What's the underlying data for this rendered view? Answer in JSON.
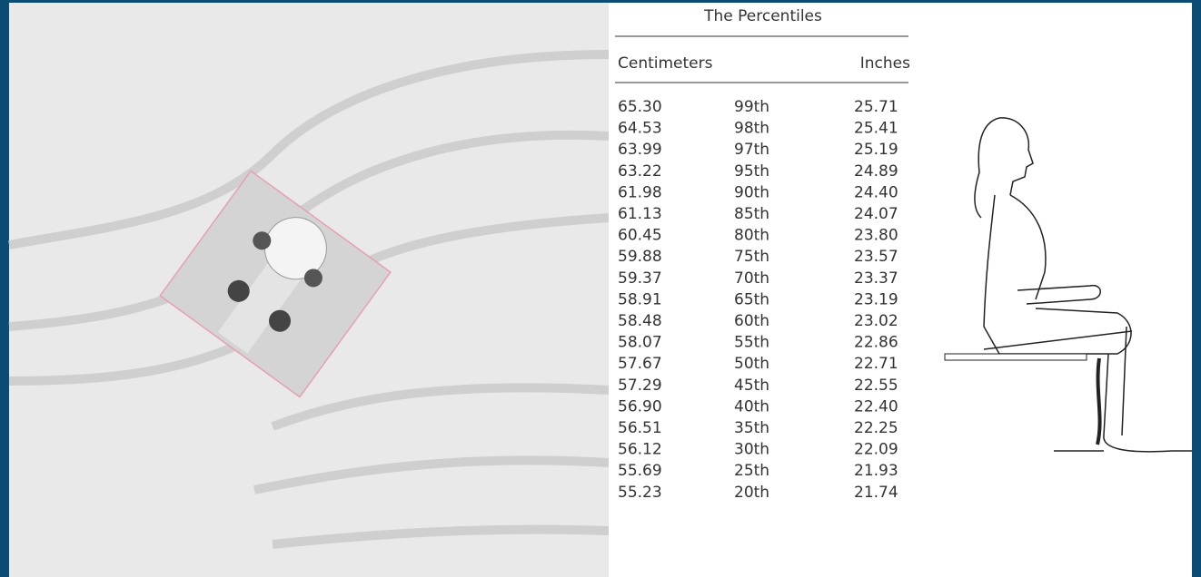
{
  "table": {
    "title": "The Percentiles",
    "columns": [
      "Centimeters",
      "Inches"
    ],
    "rows": [
      [
        "65.30",
        "99th",
        "25.71"
      ],
      [
        "64.53",
        "98th",
        "25.41"
      ],
      [
        "63.99",
        "97th",
        "25.19"
      ],
      [
        "63.22",
        "95th",
        "24.89"
      ],
      [
        "61.98",
        "90th",
        "24.40"
      ],
      [
        "61.13",
        "85th",
        "24.07"
      ],
      [
        "60.45",
        "80th",
        "23.80"
      ],
      [
        "59.88",
        "75th",
        "23.57"
      ],
      [
        "59.37",
        "70th",
        "23.37"
      ],
      [
        "58.91",
        "65th",
        "23.19"
      ],
      [
        "58.48",
        "60th",
        "23.02"
      ],
      [
        "58.07",
        "55th",
        "22.86"
      ],
      [
        "57.67",
        "50th",
        "22.71"
      ],
      [
        "57.29",
        "45th",
        "22.55"
      ],
      [
        "56.90",
        "40th",
        "22.40"
      ],
      [
        "56.51",
        "35th",
        "22.25"
      ],
      [
        "56.12",
        "30th",
        "22.09"
      ],
      [
        "55.69",
        "25th",
        "21.93"
      ],
      [
        "55.23",
        "20th",
        "21.74"
      ]
    ]
  }
}
